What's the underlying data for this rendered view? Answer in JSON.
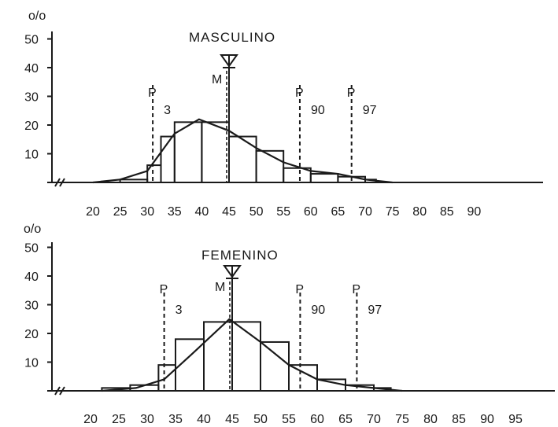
{
  "chart_data": [
    {
      "type": "bar",
      "title": "MASCULINO",
      "ylabel": "o/o",
      "xlim": [
        20,
        95
      ],
      "ylim": [
        0,
        50
      ],
      "x_ticks": [
        "20",
        "25",
        "30",
        "35",
        "40",
        "45",
        "50",
        "55",
        "60",
        "65",
        "70",
        "75",
        "80",
        "85",
        "90"
      ],
      "y_ticks": [
        "10",
        "20",
        "30",
        "40",
        "50"
      ],
      "bins": [
        {
          "x0": 25,
          "x1": 30,
          "value": 1
        },
        {
          "x0": 30,
          "x1": 32.5,
          "value": 6
        },
        {
          "x0": 32.5,
          "x1": 35,
          "value": 16
        },
        {
          "x0": 35,
          "x1": 40,
          "value": 21
        },
        {
          "x0": 40,
          "x1": 45,
          "value": 21
        },
        {
          "x0": 45,
          "x1": 50,
          "value": 16
        },
        {
          "x0": 50,
          "x1": 55,
          "value": 11
        },
        {
          "x0": 55,
          "x1": 60,
          "value": 5
        },
        {
          "x0": 60,
          "x1": 65,
          "value": 3
        },
        {
          "x0": 65,
          "x1": 70,
          "value": 2
        },
        {
          "x0": 70,
          "x1": 72,
          "value": 1
        }
      ],
      "curve": [
        {
          "x": 20,
          "y": 0
        },
        {
          "x": 25,
          "y": 1
        },
        {
          "x": 30,
          "y": 4
        },
        {
          "x": 35,
          "y": 17
        },
        {
          "x": 39.5,
          "y": 22
        },
        {
          "x": 45,
          "y": 18
        },
        {
          "x": 50,
          "y": 12
        },
        {
          "x": 55,
          "y": 7
        },
        {
          "x": 60,
          "y": 4
        },
        {
          "x": 65,
          "y": 3
        },
        {
          "x": 70,
          "y": 1
        },
        {
          "x": 75,
          "y": 0
        }
      ],
      "markers": [
        {
          "label": "P",
          "sub": "3",
          "x": 31
        },
        {
          "label": "P",
          "sub": "90",
          "x": 58
        },
        {
          "label": "P",
          "sub": "97",
          "x": 67.5
        }
      ],
      "median": {
        "label": "M",
        "x": 45
      }
    },
    {
      "type": "bar",
      "title": "FEMENINO",
      "ylabel": "o/o",
      "xlim": [
        20,
        95
      ],
      "ylim": [
        0,
        50
      ],
      "x_ticks": [
        "20",
        "25",
        "30",
        "35",
        "40",
        "45",
        "50",
        "55",
        "60",
        "65",
        "70",
        "75",
        "80",
        "85",
        "90",
        "95"
      ],
      "y_ticks": [
        "10",
        "20",
        "30",
        "40",
        "50"
      ],
      "bins": [
        {
          "x0": 22,
          "x1": 27,
          "value": 1
        },
        {
          "x0": 27,
          "x1": 32,
          "value": 2
        },
        {
          "x0": 32,
          "x1": 35,
          "value": 9
        },
        {
          "x0": 35,
          "x1": 40,
          "value": 18
        },
        {
          "x0": 40,
          "x1": 45,
          "value": 24
        },
        {
          "x0": 45,
          "x1": 50,
          "value": 24
        },
        {
          "x0": 50,
          "x1": 55,
          "value": 17
        },
        {
          "x0": 55,
          "x1": 60,
          "value": 9
        },
        {
          "x0": 60,
          "x1": 65,
          "value": 4
        },
        {
          "x0": 65,
          "x1": 70,
          "value": 2
        },
        {
          "x0": 70,
          "x1": 73,
          "value": 1
        }
      ],
      "curve": [
        {
          "x": 22,
          "y": 0
        },
        {
          "x": 28,
          "y": 1
        },
        {
          "x": 33,
          "y": 4
        },
        {
          "x": 38,
          "y": 13
        },
        {
          "x": 44.5,
          "y": 25
        },
        {
          "x": 50,
          "y": 17
        },
        {
          "x": 55,
          "y": 9
        },
        {
          "x": 60,
          "y": 4
        },
        {
          "x": 65,
          "y": 2
        },
        {
          "x": 70,
          "y": 1
        },
        {
          "x": 75,
          "y": 0
        }
      ],
      "markers": [
        {
          "label": "P",
          "sub": "3",
          "x": 33
        },
        {
          "label": "P",
          "sub": "90",
          "x": 57
        },
        {
          "label": "P",
          "sub": "97",
          "x": 67
        }
      ],
      "median": {
        "label": "M",
        "x": 45
      }
    }
  ]
}
